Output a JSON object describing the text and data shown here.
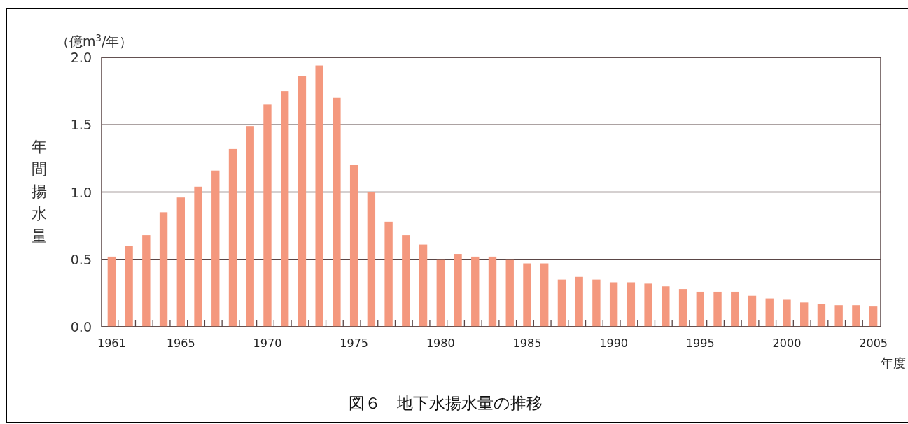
{
  "chart_data": {
    "type": "bar",
    "title": "図６　地下水揚水量の推移",
    "ylabel": "年間揚水量",
    "xlabel": "年度",
    "annotations": [
      "（億m$^{3}$/年）"
    ],
    "categories": [
      "1961",
      null,
      null,
      null,
      "1965",
      null,
      null,
      null,
      null,
      "1970",
      null,
      null,
      null,
      null,
      "1975",
      null,
      null,
      null,
      null,
      "1980",
      null,
      null,
      null,
      null,
      "1985",
      null,
      null,
      null,
      null,
      "1990",
      null,
      null,
      null,
      null,
      "1995",
      null,
      null,
      null,
      null,
      "2000",
      null,
      null,
      null,
      null,
      "2005"
    ],
    "values": [
      0.52,
      0.6,
      0.68,
      0.85,
      0.96,
      1.04,
      1.16,
      1.32,
      1.49,
      1.65,
      1.75,
      1.86,
      1.94,
      1.7,
      1.2,
      1.0,
      0.78,
      0.68,
      0.61,
      0.5,
      0.54,
      0.52,
      0.52,
      0.5,
      0.47,
      0.47,
      0.35,
      0.37,
      0.35,
      0.33,
      0.33,
      0.32,
      0.3,
      0.28,
      0.26,
      0.26,
      0.26,
      0.23,
      0.21,
      0.2,
      0.18,
      0.17,
      0.16,
      0.16,
      0.15
    ],
    "color": "#f4987e",
    "ylim": [
      0,
      2.0
    ],
    "yticks": [
      {
        "value": 0,
        "label": "0.0"
      },
      {
        "value": 0.5,
        "label": "0.5"
      },
      {
        "value": 1.0,
        "label": "1.0"
      },
      {
        "value": 1.5,
        "label": "1.5"
      },
      {
        "value": 2.0,
        "label": "2.0"
      }
    ],
    "grid": "y"
  }
}
